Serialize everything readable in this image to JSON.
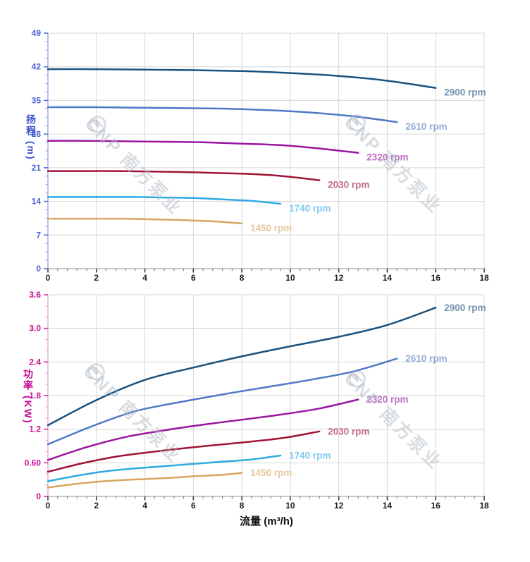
{
  "watermark": {
    "text": "CNP 南方泵业"
  },
  "chart_data": [
    {
      "type": "line",
      "title": "",
      "ylabel": "扬程 (m)",
      "xlabel": "",
      "xlim": [
        0,
        18
      ],
      "ylim": [
        0,
        49
      ],
      "xtick_values": [
        0,
        2,
        4,
        6,
        8,
        10,
        12,
        14,
        16,
        18
      ],
      "xtick_labels": [
        "0",
        "2",
        "4",
        "6",
        "8",
        "10",
        "12",
        "14",
        "16",
        "18"
      ],
      "ytick_values": [
        0,
        7,
        14,
        21,
        28,
        35,
        42,
        49
      ],
      "ytick_labels": [
        "0",
        "7",
        "14",
        "21",
        "28",
        "35",
        "42",
        "49"
      ],
      "x_minor_step": 0.4,
      "y_minor_step": 1.75,
      "grid": true,
      "grid_color": "#d6d6d6",
      "legend_position": "right-of-curve-end",
      "y_axis_colors": {
        "line": "#9aa8e8",
        "tick": "#5a6fd8",
        "label": "#4a5fd3"
      },
      "x_axis_colors": {
        "line": "#a8a8a8",
        "tick": "#3c3c3c",
        "label": "#1c1c1c"
      },
      "series": [
        {
          "name": "2900 rpm",
          "rpm": 2900,
          "color": "#1a527e",
          "label_color": "#7593ae",
          "points": [
            [
              0,
              41.5
            ],
            [
              2,
              41.5
            ],
            [
              4,
              41.4
            ],
            [
              6,
              41.3
            ],
            [
              8,
              41.1
            ],
            [
              10,
              40.7
            ],
            [
              12,
              40.1
            ],
            [
              14,
              39.1
            ],
            [
              16,
              37.6
            ]
          ]
        },
        {
          "name": "2610 rpm",
          "rpm": 2610,
          "color": "#4f79c6",
          "label_color": "#92acdc",
          "points": [
            [
              0,
              33.6
            ],
            [
              1.8,
              33.6
            ],
            [
              3.6,
              33.5
            ],
            [
              5.4,
              33.4
            ],
            [
              7.2,
              33.3
            ],
            [
              9,
              33.0
            ],
            [
              10.8,
              32.5
            ],
            [
              12.6,
              31.7
            ],
            [
              14.4,
              30.5
            ]
          ]
        },
        {
          "name": "2320 rpm",
          "rpm": 2320,
          "color": "#9a15a0",
          "label_color": "#c06ec4",
          "points": [
            [
              0,
              26.6
            ],
            [
              1.6,
              26.6
            ],
            [
              3.2,
              26.5
            ],
            [
              4.8,
              26.4
            ],
            [
              6.4,
              26.3
            ],
            [
              8,
              26.0
            ],
            [
              9.6,
              25.7
            ],
            [
              11.2,
              25.0
            ],
            [
              12.8,
              24.1
            ]
          ]
        },
        {
          "name": "2030 rpm",
          "rpm": 2030,
          "color": "#a01335",
          "label_color": "#c46d82",
          "points": [
            [
              0,
              20.3
            ],
            [
              1.4,
              20.3
            ],
            [
              2.8,
              20.3
            ],
            [
              4.2,
              20.2
            ],
            [
              5.6,
              20.1
            ],
            [
              7,
              19.9
            ],
            [
              8.4,
              19.7
            ],
            [
              9.8,
              19.2
            ],
            [
              11.2,
              18.4
            ]
          ]
        },
        {
          "name": "1740 rpm",
          "rpm": 1740,
          "color": "#2faae2",
          "label_color": "#7ecaed",
          "points": [
            [
              0,
              14.9
            ],
            [
              1.2,
              14.9
            ],
            [
              2.4,
              14.9
            ],
            [
              3.6,
              14.9
            ],
            [
              4.8,
              14.8
            ],
            [
              6,
              14.7
            ],
            [
              7.2,
              14.4
            ],
            [
              8.4,
              14.1
            ],
            [
              9.6,
              13.5
            ]
          ]
        },
        {
          "name": "1450 rpm",
          "rpm": 1450,
          "color": "#d8a562",
          "label_color": "#e7c79e",
          "points": [
            [
              0,
              10.4
            ],
            [
              1,
              10.4
            ],
            [
              2,
              10.4
            ],
            [
              3,
              10.4
            ],
            [
              4,
              10.3
            ],
            [
              5,
              10.2
            ],
            [
              6,
              10.0
            ],
            [
              7,
              9.8
            ],
            [
              8,
              9.4
            ]
          ]
        }
      ]
    },
    {
      "type": "line",
      "title": "",
      "ylabel": "功率 (KW)",
      "xlabel": "流量 (m³/h)",
      "xlim": [
        0,
        18
      ],
      "ylim": [
        0,
        3.6
      ],
      "xtick_values": [
        0,
        2,
        4,
        6,
        8,
        10,
        12,
        14,
        16,
        18
      ],
      "xtick_labels": [
        "0",
        "2",
        "4",
        "6",
        "8",
        "10",
        "12",
        "14",
        "16",
        "18"
      ],
      "ytick_values": [
        0,
        0.6,
        1.2,
        1.8,
        2.4,
        3.0,
        3.6
      ],
      "ytick_labels": [
        "0",
        "0.60",
        "1.2",
        "1.8",
        "2.4",
        "3.0",
        "3.6"
      ],
      "x_minor_step": 0.4,
      "y_minor_step": 0.2,
      "grid": true,
      "grid_color": "#d6d6d6",
      "legend_position": "right-of-curve-end",
      "y_axis_colors": {
        "line": "#eba6d6",
        "tick": "#d2359f",
        "label": "#cb0b92"
      },
      "x_axis_colors": {
        "line": "#a8a8a8",
        "tick": "#3c3c3c",
        "label": "#1c1c1c"
      },
      "series": [
        {
          "name": "2900 rpm",
          "rpm": 2900,
          "color": "#1a527e",
          "label_color": "#7593ae",
          "points": [
            [
              0,
              1.27
            ],
            [
              2,
              1.72
            ],
            [
              4,
              2.08
            ],
            [
              6,
              2.3
            ],
            [
              8,
              2.5
            ],
            [
              10,
              2.68
            ],
            [
              12,
              2.85
            ],
            [
              14,
              3.06
            ],
            [
              16,
              3.37
            ]
          ]
        },
        {
          "name": "2610 rpm",
          "rpm": 2610,
          "color": "#4f79c6",
          "label_color": "#92acdc",
          "points": [
            [
              0,
              0.93
            ],
            [
              1.8,
              1.25
            ],
            [
              3.6,
              1.52
            ],
            [
              5.4,
              1.68
            ],
            [
              7.2,
              1.82
            ],
            [
              9,
              1.95
            ],
            [
              10.8,
              2.08
            ],
            [
              12.6,
              2.23
            ],
            [
              14.4,
              2.46
            ]
          ]
        },
        {
          "name": "2320 rpm",
          "rpm": 2320,
          "color": "#9a15a0",
          "label_color": "#c06ec4",
          "points": [
            [
              0,
              0.65
            ],
            [
              1.6,
              0.88
            ],
            [
              3.2,
              1.06
            ],
            [
              4.8,
              1.18
            ],
            [
              6.4,
              1.28
            ],
            [
              8,
              1.37
            ],
            [
              9.6,
              1.46
            ],
            [
              11.2,
              1.57
            ],
            [
              12.8,
              1.73
            ]
          ]
        },
        {
          "name": "2030 rpm",
          "rpm": 2030,
          "color": "#a01335",
          "label_color": "#c46d82",
          "points": [
            [
              0,
              0.44
            ],
            [
              1.4,
              0.59
            ],
            [
              2.8,
              0.71
            ],
            [
              4.2,
              0.79
            ],
            [
              5.6,
              0.86
            ],
            [
              7,
              0.92
            ],
            [
              8.4,
              0.98
            ],
            [
              9.8,
              1.05
            ],
            [
              11.2,
              1.16
            ]
          ]
        },
        {
          "name": "1740 rpm",
          "rpm": 1740,
          "color": "#2faae2",
          "label_color": "#7ecaed",
          "points": [
            [
              0,
              0.27
            ],
            [
              1.2,
              0.37
            ],
            [
              2.4,
              0.45
            ],
            [
              3.6,
              0.5
            ],
            [
              4.8,
              0.54
            ],
            [
              6,
              0.58
            ],
            [
              7.2,
              0.62
            ],
            [
              8.4,
              0.66
            ],
            [
              9.6,
              0.73
            ]
          ]
        },
        {
          "name": "1450 rpm",
          "rpm": 1450,
          "color": "#d8a562",
          "label_color": "#e7c79e",
          "points": [
            [
              0,
              0.16
            ],
            [
              1.1,
              0.22
            ],
            [
              2,
              0.26
            ],
            [
              3,
              0.29
            ],
            [
              4,
              0.31
            ],
            [
              5,
              0.33
            ],
            [
              6,
              0.36
            ],
            [
              7,
              0.38
            ],
            [
              8,
              0.42
            ]
          ]
        }
      ]
    }
  ]
}
